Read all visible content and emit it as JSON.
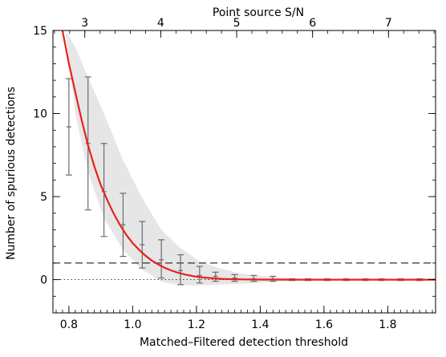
{
  "chart_data": {
    "type": "line",
    "xlabel": "Matched–Filtered detection threshold",
    "ylabel": "Number of spurious detections",
    "top_xlabel": "Point source S/N",
    "xlim": [
      0.75,
      1.95
    ],
    "ylim": [
      -2,
      15
    ],
    "top_xlim": [
      2.58,
      7.62
    ],
    "x_ticks": [
      "0.8",
      "1.0",
      "1.2",
      "1.4",
      "1.6",
      "1.8"
    ],
    "y_ticks": [
      "0",
      "5",
      "10",
      "15"
    ],
    "top_x_ticks": [
      "3",
      "4",
      "5",
      "6",
      "7"
    ],
    "grid": false,
    "errorbars": {
      "x": [
        0.8,
        0.86,
        0.91,
        0.97,
        1.03,
        1.09,
        1.15,
        1.21,
        1.26,
        1.32,
        1.38,
        1.44,
        1.5,
        1.55,
        1.61,
        1.67,
        1.73,
        1.78,
        1.84,
        1.9
      ],
      "y": [
        9.2,
        8.2,
        5.3,
        3.3,
        2.1,
        1.2,
        0.55,
        0.25,
        0.2,
        0.1,
        0.05,
        0.03,
        0.0,
        0.0,
        0.0,
        0.0,
        0.0,
        0.0,
        0.0,
        0.0
      ],
      "lower": [
        6.3,
        4.2,
        2.6,
        1.4,
        0.7,
        0.1,
        -0.3,
        -0.2,
        -0.1,
        -0.1,
        -0.1,
        -0.1,
        -0.05,
        -0.05,
        -0.05,
        -0.05,
        -0.05,
        -0.05,
        -0.05,
        -0.05
      ],
      "upper": [
        12.1,
        12.2,
        8.2,
        5.2,
        3.5,
        2.4,
        1.5,
        0.8,
        0.45,
        0.3,
        0.25,
        0.2,
        0.05,
        0.05,
        0.05,
        0.05,
        0.05,
        0.05,
        0.05,
        0.05
      ],
      "color": "#6b6b6b"
    },
    "model_curve": {
      "x": [
        0.78,
        0.8,
        0.82,
        0.84,
        0.86,
        0.88,
        0.9,
        0.92,
        0.94,
        0.96,
        0.98,
        1.0,
        1.02,
        1.04,
        1.06,
        1.08,
        1.1,
        1.12,
        1.14,
        1.16,
        1.18,
        1.2,
        1.22,
        1.24,
        1.26,
        1.28,
        1.3,
        1.32,
        1.34,
        1.36,
        1.38,
        1.4,
        1.45,
        1.5,
        1.6,
        1.7,
        1.8,
        1.95
      ],
      "y": [
        15.0,
        13.0,
        11.3,
        9.6,
        8.1,
        6.8,
        5.7,
        4.8,
        4.0,
        3.3,
        2.7,
        2.2,
        1.8,
        1.45,
        1.15,
        0.92,
        0.72,
        0.56,
        0.43,
        0.33,
        0.25,
        0.18,
        0.13,
        0.1,
        0.07,
        0.05,
        0.035,
        0.025,
        0.018,
        0.012,
        0.008,
        0.005,
        0.002,
        0.001,
        0.0,
        0.0,
        0.0,
        0.0
      ],
      "color": "#e8221b"
    },
    "confidence_band": {
      "x": [
        0.79,
        0.82,
        0.86,
        0.91,
        0.97,
        1.03,
        1.09,
        1.15,
        1.21,
        1.27,
        1.33,
        1.39,
        1.45,
        1.52
      ],
      "upper": [
        15.0,
        14.0,
        12.2,
        10.0,
        7.2,
        4.9,
        3.0,
        1.9,
        1.1,
        0.7,
        0.4,
        0.25,
        0.15,
        0.08
      ],
      "lower": [
        15.0,
        10.0,
        6.5,
        3.7,
        1.8,
        0.6,
        -0.1,
        -0.35,
        -0.35,
        -0.3,
        -0.25,
        -0.2,
        -0.12,
        -0.05
      ],
      "color": "#e6e6e6"
    },
    "reference_lines": [
      {
        "y": 1,
        "style": "dashed",
        "color": "#000000"
      },
      {
        "y": 0,
        "style": "dotted",
        "color": "#000000"
      }
    ],
    "minor_x_ticks": [
      0.76,
      0.78,
      0.8,
      0.82,
      0.84,
      0.86,
      0.88,
      0.9,
      0.92,
      0.94,
      0.96,
      0.98,
      1.0,
      1.02,
      1.04,
      1.06,
      1.08,
      1.1,
      1.12,
      1.14,
      1.16,
      1.18,
      1.2,
      1.22,
      1.24,
      1.26,
      1.28,
      1.3,
      1.32,
      1.34,
      1.36,
      1.38,
      1.4,
      1.42,
      1.44,
      1.46,
      1.48,
      1.5,
      1.52,
      1.54,
      1.56,
      1.58,
      1.6,
      1.62,
      1.64,
      1.66,
      1.68,
      1.7,
      1.72,
      1.74,
      1.76,
      1.78,
      1.8,
      1.82,
      1.84,
      1.86,
      1.88,
      1.9,
      1.92,
      1.94
    ]
  }
}
